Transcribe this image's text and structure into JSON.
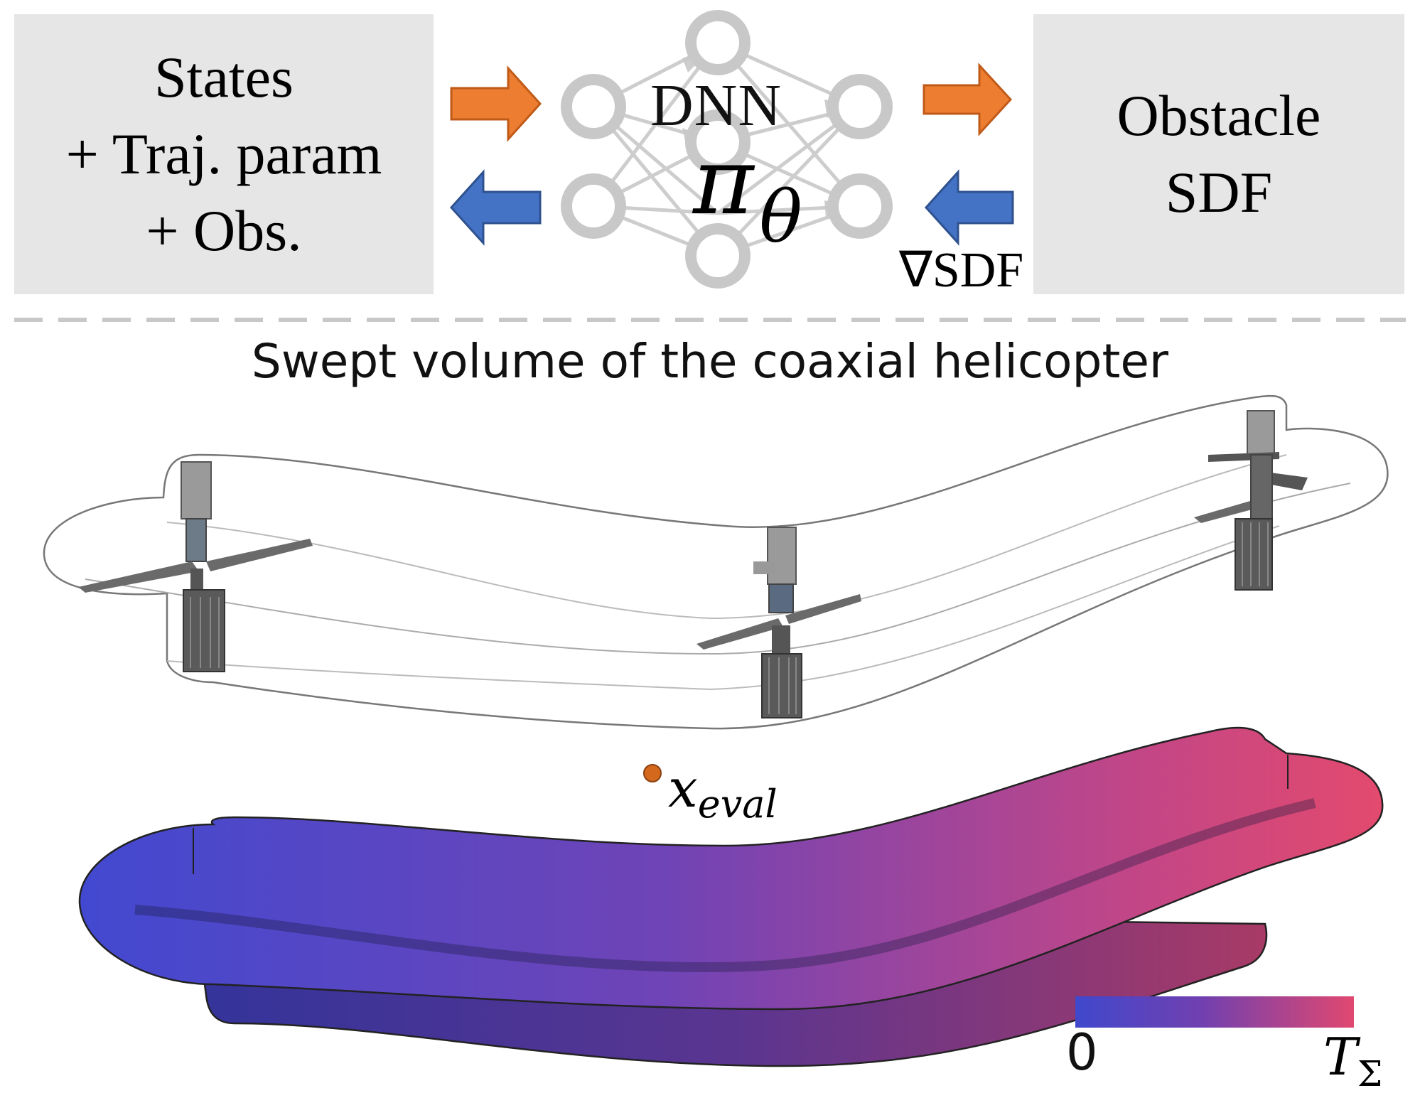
{
  "input_box": {
    "lines": [
      "States",
      "+ Traj. param",
      "+ Obs."
    ]
  },
  "network": {
    "label": "DNN",
    "symbol": "π",
    "subscript": "θ"
  },
  "output_box": {
    "lines": [
      "Obstacle",
      "SDF"
    ]
  },
  "gradient_label": "∇SDF",
  "swept_volume": {
    "title": "Swept volume of the coaxial helicopter",
    "point_label": "x",
    "point_subscript": "eval"
  },
  "colorbar": {
    "min_label": "0",
    "max_label": "T",
    "max_subscript": "Σ",
    "colors": [
      "#4048cc",
      "#7040b0",
      "#e04870"
    ]
  },
  "colors": {
    "forward_arrow": "#ed7d31",
    "backward_arrow": "#4472c4",
    "box_fill": "#e6e6e6",
    "node_stroke": "#c8c8c8",
    "point": "#d4691e"
  }
}
